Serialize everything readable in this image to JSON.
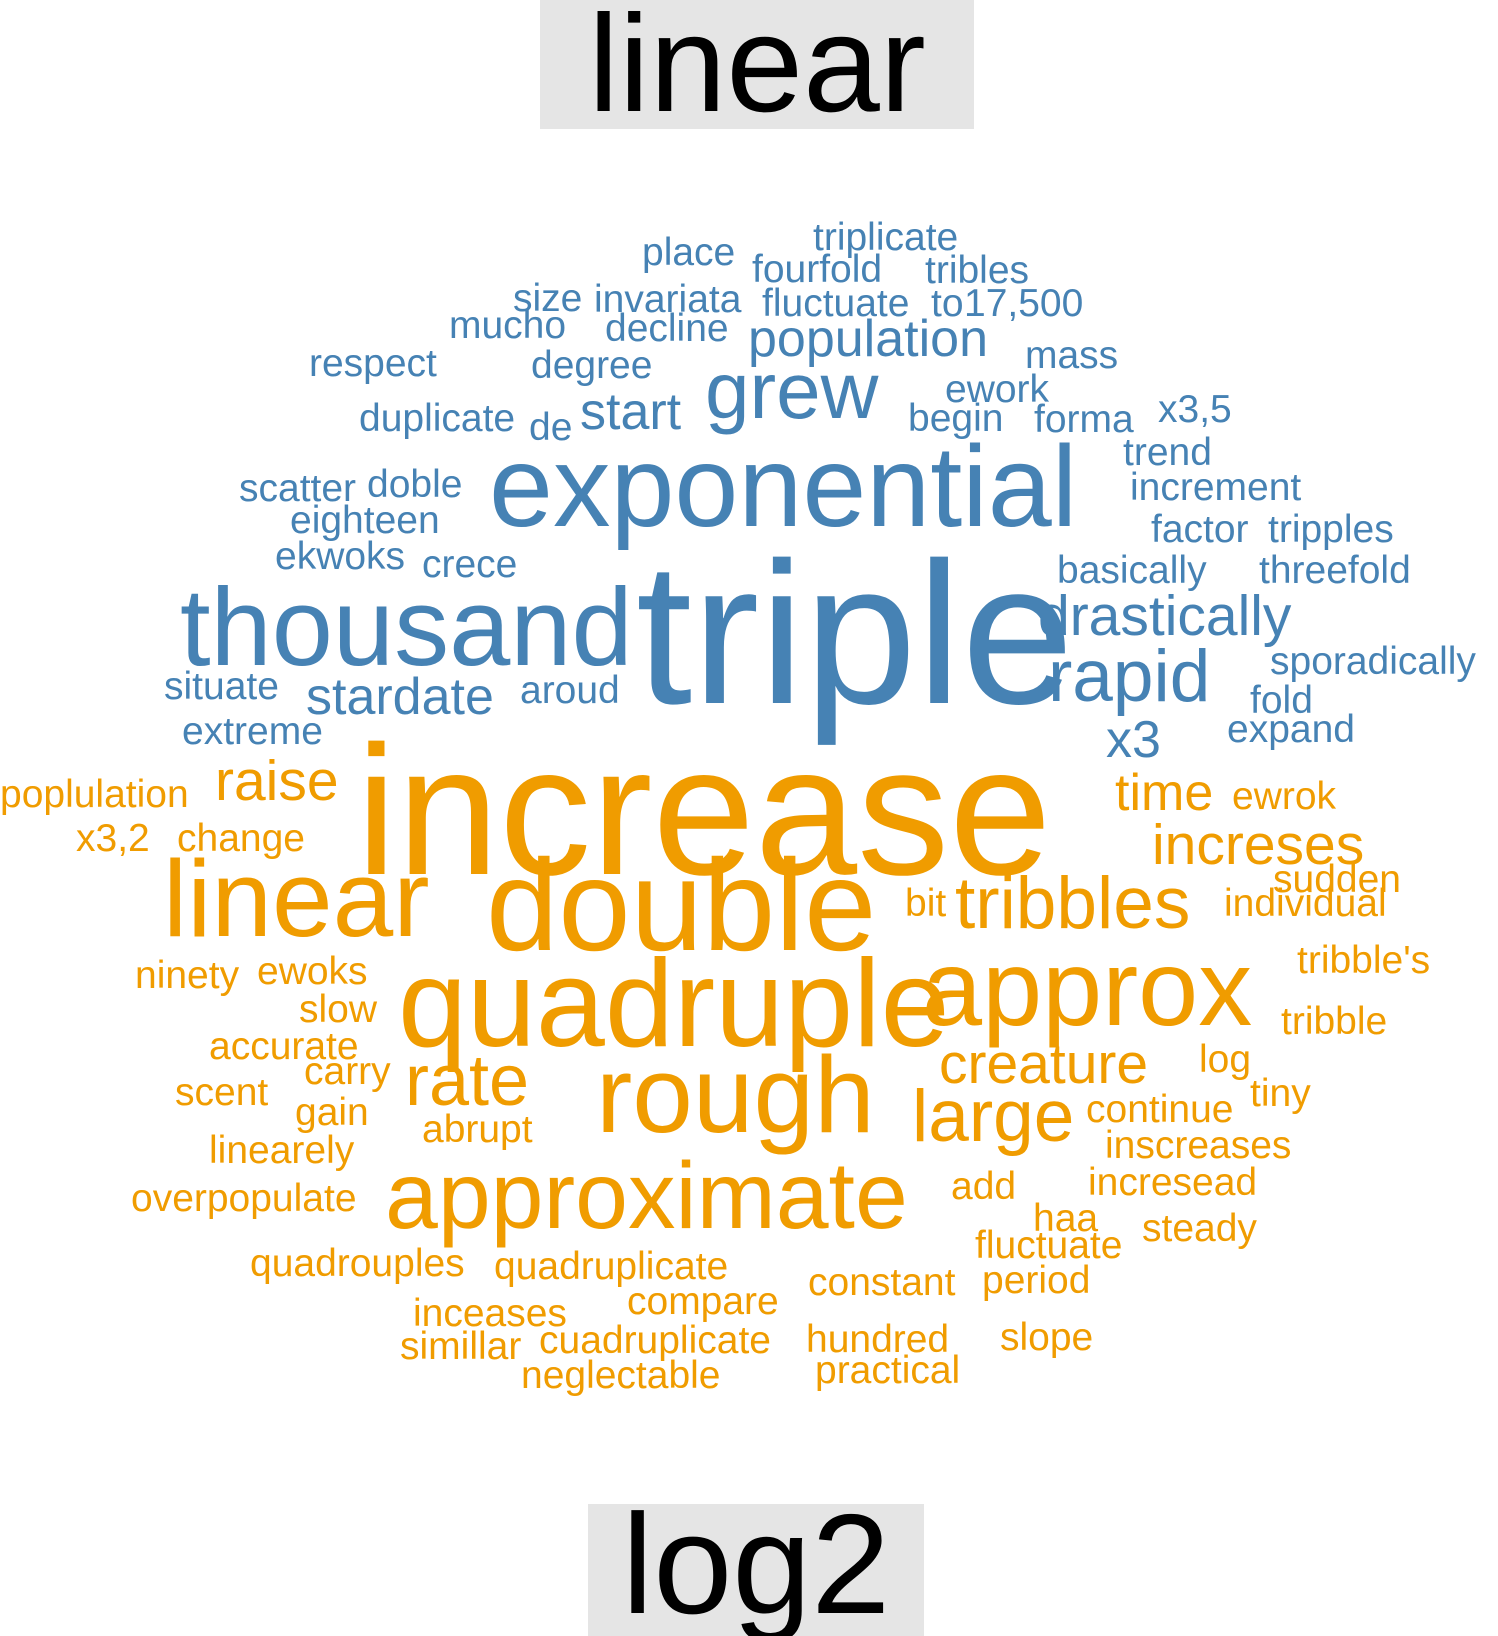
{
  "labels": {
    "top": "linear",
    "bottom": "log2"
  },
  "colors": {
    "linear": "#4682b4",
    "log2": "#f09c00",
    "label_bg": "#e5e5e5",
    "label_text": "#000000"
  },
  "clouds": {
    "linear": [
      "triplicate",
      "place",
      "fourfold",
      "tribles",
      "size",
      "invariata",
      "fluctuate",
      "to",
      "17,500",
      "mucho",
      "decline",
      "population",
      "mass",
      "respect",
      "degree",
      "grew",
      "ework",
      "x3,5",
      "start",
      "begin",
      "forma",
      "duplicate",
      "de",
      "trend",
      "exponential",
      "increment",
      "scatter",
      "doble",
      "eighteen",
      "factor",
      "tripples",
      "ekwoks",
      "crece",
      "basically",
      "threefold",
      "thousand",
      "triple",
      "drastically",
      "sporadically",
      "rapid",
      "situate",
      "stardate",
      "aroud",
      "fold",
      "extreme",
      "expand",
      "x3"
    ],
    "log2": [
      "increase",
      "poplulation",
      "raise",
      "time",
      "ewrok",
      "x3,2",
      "change",
      "increses",
      "sudden",
      "linear",
      "double",
      "tribbles",
      "bit",
      "individual",
      "ninety",
      "ewoks",
      "approx",
      "tribble's",
      "slow",
      "quadruple",
      "tribble",
      "accurate",
      "creature",
      "log",
      "carry",
      "rate",
      "scent",
      "rough",
      "gain",
      "large",
      "continue",
      "tiny",
      "abrupt",
      "linearely",
      "inscreases",
      "overpopulate",
      "approximate",
      "add",
      "incresead",
      "haa",
      "steady",
      "fluctuate",
      "quadrouples",
      "quadruplicate",
      "constant",
      "period",
      "compare",
      "inceases",
      "slope",
      "simillar",
      "cuadruplicate",
      "hundred",
      "neglectable",
      "practical"
    ]
  }
}
